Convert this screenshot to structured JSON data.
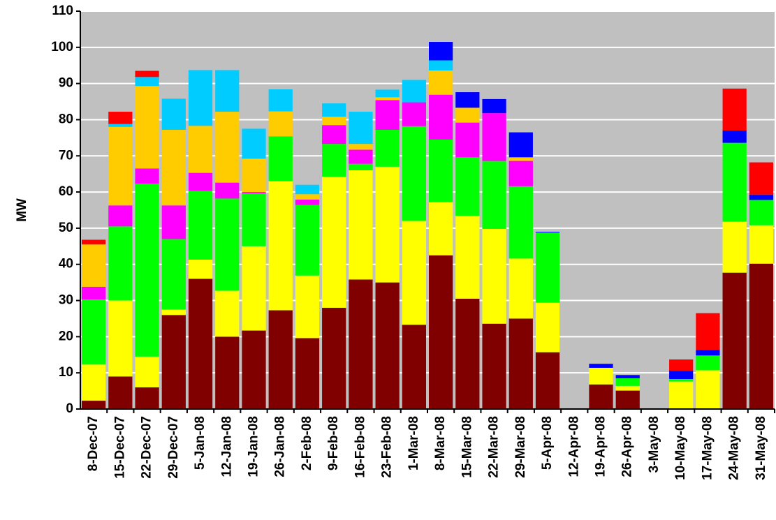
{
  "chart_data": {
    "type": "stacked_bar",
    "y_label": "MW",
    "categories": [
      "8-Dec-07",
      "15-Dec-07",
      "22-Dec-07",
      "29-Dec-07",
      "5-Jan-08",
      "12-Jan-08",
      "19-Jan-08",
      "26-Jan-08",
      "2-Feb-08",
      "9-Feb-08",
      "16-Feb-08",
      "23-Feb-08",
      "1-Mar-08",
      "8-Mar-08",
      "15-Mar-08",
      "22-Mar-08",
      "29-Mar-08",
      "5-Apr-08",
      "12-Apr-08",
      "19-Apr-08",
      "26-Apr-08",
      "3-May-08",
      "10-May-08",
      "17-May-08",
      "24-May-08",
      "31-May-08"
    ],
    "series": [
      {
        "color": "#800000",
        "values": [
          2.3,
          9,
          6,
          26,
          36,
          20,
          21.7,
          27.3,
          19.6,
          28,
          35.8,
          35,
          23.3,
          42.5,
          30.5,
          23.6,
          25,
          15.7,
          0,
          6.8,
          5.1,
          0,
          0,
          0,
          37.7,
          40.2
        ]
      },
      {
        "color": "#ffff00",
        "values": [
          10,
          21,
          8.5,
          1.5,
          5.3,
          12.7,
          23.3,
          35.7,
          17.3,
          36.2,
          30.2,
          32,
          28.7,
          14.7,
          22.9,
          26.2,
          16.6,
          13.7,
          0,
          4.6,
          1.3,
          0,
          7.6,
          10.7,
          14.1,
          10.6
        ]
      },
      {
        "color": "#00ff00",
        "values": [
          18,
          20.5,
          47.8,
          19.5,
          19,
          25.5,
          14.6,
          12.4,
          19.5,
          9.1,
          1.8,
          10.2,
          26.2,
          17.3,
          16.2,
          18.8,
          20,
          19.4,
          0,
          0,
          2.1,
          0,
          0.7,
          4.1,
          21.8,
          7
        ]
      },
      {
        "color": "#ff00ff",
        "values": [
          3.5,
          5.8,
          4.2,
          9.3,
          5,
          4.4,
          0.4,
          0,
          1.5,
          5.2,
          3.9,
          8.2,
          6.6,
          12.4,
          9.6,
          13.2,
          7,
          0,
          0,
          0,
          0,
          0,
          0,
          0,
          0,
          0
        ]
      },
      {
        "color": "#ffcc00",
        "values": [
          11.7,
          21.7,
          22.8,
          20.9,
          13,
          19.6,
          9.2,
          6.9,
          1.5,
          2.3,
          1.6,
          0.8,
          0,
          6.7,
          4.1,
          0,
          1,
          0,
          0,
          0,
          0,
          0,
          0,
          0,
          0,
          0
        ]
      },
      {
        "color": "#00ccff",
        "values": [
          0,
          0.8,
          2.5,
          8.6,
          15.4,
          11.5,
          8.3,
          6.1,
          2.6,
          3.7,
          8.9,
          2.1,
          6.2,
          2.8,
          0,
          0,
          0,
          0,
          0,
          0,
          0,
          0,
          0,
          0,
          0,
          0
        ]
      },
      {
        "color": "#0000ff",
        "values": [
          0,
          0,
          0,
          0,
          0,
          0,
          0,
          0,
          0,
          0,
          0,
          0,
          0,
          5.1,
          4.3,
          3.9,
          6.9,
          0.2,
          0,
          1.1,
          0.9,
          0,
          2.3,
          1.5,
          3.4,
          1.5
        ]
      },
      {
        "color": "#ff0000",
        "values": [
          1.3,
          3.4,
          1.7,
          0,
          0,
          0,
          0,
          0,
          0,
          0,
          0,
          0,
          0,
          0,
          0,
          0,
          0,
          0,
          0,
          0,
          0,
          0,
          3.1,
          10.2,
          11.6,
          8.9
        ]
      }
    ],
    "ylim": [
      0,
      110
    ],
    "yticks": [
      0,
      10,
      20,
      30,
      40,
      50,
      60,
      70,
      80,
      90,
      100,
      110
    ],
    "grid": true,
    "plot_background": "#c0c0c0"
  }
}
